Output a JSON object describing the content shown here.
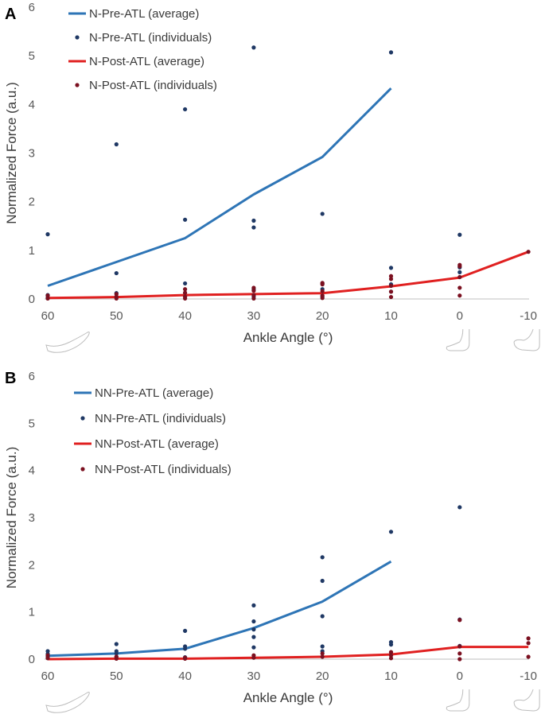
{
  "colors": {
    "pre_line": "#2e75b6",
    "pre_dot": "#1f3864",
    "post_line": "#e02020",
    "post_dot": "#7b1020",
    "axis": "#bfbfbf",
    "text": "#595959"
  },
  "chart_data": [
    {
      "type": "line",
      "panel": "A",
      "xlabel": "Ankle Angle (°)",
      "ylabel": "Normalized Force (a.u.)",
      "x_categories": [
        "60",
        "50",
        "40",
        "30",
        "20",
        "10",
        "0",
        "-10"
      ],
      "ylim": [
        0,
        6
      ],
      "yticks": [
        0,
        1,
        2,
        3,
        4,
        5,
        6
      ],
      "legend_position": "top-left",
      "series": [
        {
          "name": "N-Pre-ATL (average)",
          "kind": "line",
          "color": "#2e75b6",
          "values": [
            0.27,
            0.76,
            1.25,
            2.15,
            2.92,
            4.33,
            null,
            null
          ]
        },
        {
          "name": "N-Pre-ATL (individuals)",
          "kind": "points",
          "color": "#1f3864",
          "points": [
            [
              0,
              1.33
            ],
            [
              0,
              0.08
            ],
            [
              0,
              0.03
            ],
            [
              1,
              3.18
            ],
            [
              1,
              0.53
            ],
            [
              1,
              0.12
            ],
            [
              1,
              0.05
            ],
            [
              2,
              3.9
            ],
            [
              2,
              1.63
            ],
            [
              2,
              0.32
            ],
            [
              2,
              0.1
            ],
            [
              2,
              0.05
            ],
            [
              3,
              5.17
            ],
            [
              3,
              1.61
            ],
            [
              3,
              1.47
            ],
            [
              3,
              0.2
            ],
            [
              3,
              0.05
            ],
            [
              4,
              1.75
            ],
            [
              4,
              0.32
            ],
            [
              4,
              0.2
            ],
            [
              4,
              0.05
            ],
            [
              5,
              5.07
            ],
            [
              5,
              0.64
            ],
            [
              5,
              0.3
            ],
            [
              5,
              0.15
            ],
            [
              6,
              1.32
            ],
            [
              6,
              0.65
            ],
            [
              6,
              0.55
            ]
          ]
        },
        {
          "name": "N-Post-ATL (average)",
          "kind": "line",
          "color": "#e02020",
          "values": [
            0.02,
            0.04,
            0.08,
            0.1,
            0.12,
            0.26,
            0.44,
            0.97
          ]
        },
        {
          "name": "N-Post-ATL (individuals)",
          "kind": "points",
          "color": "#7b1020",
          "points": [
            [
              0,
              0.07
            ],
            [
              0,
              0.01
            ],
            [
              1,
              0.1
            ],
            [
              1,
              0.04
            ],
            [
              1,
              0.01
            ],
            [
              2,
              0.2
            ],
            [
              2,
              0.13
            ],
            [
              2,
              0.05
            ],
            [
              2,
              0.01
            ],
            [
              3,
              0.23
            ],
            [
              3,
              0.17
            ],
            [
              3,
              0.08
            ],
            [
              3,
              0.01
            ],
            [
              4,
              0.33
            ],
            [
              4,
              0.3
            ],
            [
              4,
              0.16
            ],
            [
              4,
              0.07
            ],
            [
              4,
              0.02
            ],
            [
              5,
              0.47
            ],
            [
              5,
              0.41
            ],
            [
              5,
              0.27
            ],
            [
              5,
              0.15
            ],
            [
              5,
              0.04
            ],
            [
              6,
              0.7
            ],
            [
              6,
              0.67
            ],
            [
              6,
              0.45
            ],
            [
              6,
              0.23
            ],
            [
              6,
              0.07
            ],
            [
              7,
              0.97
            ]
          ]
        }
      ]
    },
    {
      "type": "line",
      "panel": "B",
      "xlabel": "Ankle Angle (°)",
      "ylabel": "Normalized Force (a.u.)",
      "x_categories": [
        "60",
        "50",
        "40",
        "30",
        "20",
        "10",
        "0",
        "-10"
      ],
      "ylim": [
        0,
        6
      ],
      "yticks": [
        0,
        1,
        2,
        3,
        4,
        5,
        6
      ],
      "legend_position": "top-left",
      "series": [
        {
          "name": "NN-Pre-ATL (average)",
          "kind": "line",
          "color": "#2e75b6",
          "values": [
            0.07,
            0.12,
            0.22,
            0.66,
            1.22,
            2.07,
            null,
            null
          ]
        },
        {
          "name": "NN-Pre-ATL (individuals)",
          "kind": "points",
          "color": "#1f3864",
          "points": [
            [
              0,
              0.17
            ],
            [
              0,
              0.11
            ],
            [
              0,
              0.05
            ],
            [
              1,
              0.32
            ],
            [
              1,
              0.17
            ],
            [
              1,
              0.12
            ],
            [
              1,
              0.05
            ],
            [
              2,
              0.6
            ],
            [
              2,
              0.27
            ],
            [
              2,
              0.22
            ],
            [
              2,
              0.04
            ],
            [
              3,
              1.14
            ],
            [
              3,
              0.8
            ],
            [
              3,
              0.63
            ],
            [
              3,
              0.47
            ],
            [
              3,
              0.25
            ],
            [
              4,
              2.16
            ],
            [
              4,
              1.66
            ],
            [
              4,
              0.91
            ],
            [
              4,
              0.27
            ],
            [
              4,
              0.17
            ],
            [
              5,
              2.7
            ],
            [
              5,
              0.36
            ],
            [
              5,
              0.31
            ],
            [
              5,
              0.12
            ],
            [
              6,
              3.22
            ],
            [
              6,
              0.84
            ],
            [
              6,
              0.28
            ]
          ]
        },
        {
          "name": "NN-Post-ATL (average)",
          "kind": "line",
          "color": "#e02020",
          "values": [
            0.0,
            0.01,
            0.01,
            0.03,
            0.05,
            0.1,
            0.26,
            0.26
          ]
        },
        {
          "name": "NN-Post-ATL (individuals)",
          "kind": "points",
          "color": "#7b1020",
          "points": [
            [
              0,
              0.08
            ],
            [
              0,
              0.02
            ],
            [
              1,
              0.05
            ],
            [
              1,
              0.01
            ],
            [
              2,
              0.03
            ],
            [
              2,
              0.01
            ],
            [
              3,
              0.08
            ],
            [
              3,
              0.03
            ],
            [
              4,
              0.12
            ],
            [
              4,
              0.05
            ],
            [
              5,
              0.15
            ],
            [
              5,
              0.08
            ],
            [
              5,
              0.02
            ],
            [
              6,
              0.83
            ],
            [
              6,
              0.27
            ],
            [
              6,
              0.12
            ],
            [
              6,
              0.0
            ],
            [
              7,
              0.44
            ],
            [
              7,
              0.34
            ],
            [
              7,
              0.05
            ]
          ]
        }
      ]
    }
  ]
}
